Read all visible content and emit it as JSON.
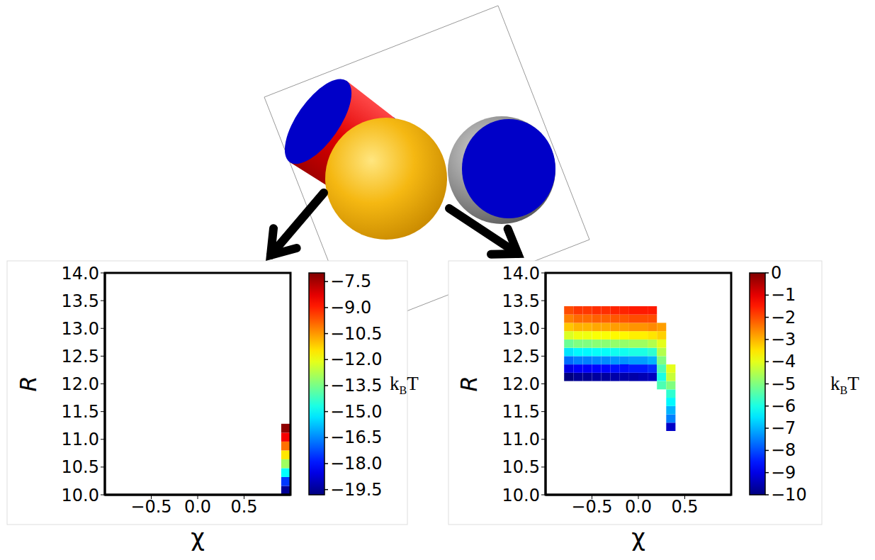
{
  "chart_data": [
    {
      "type": "heatmap",
      "x_label": "χ",
      "y_label": "R",
      "xlim": [
        -1.0,
        1.0
      ],
      "xticks": [
        {
          "value": -0.5,
          "label": "−0.5"
        },
        {
          "value": 0,
          "label": "0.0"
        },
        0.5
      ],
      "ylim": [
        10.0,
        14.0
      ],
      "yticks": [
        {
          "value": 10,
          "label": "10.0"
        },
        10.5,
        {
          "value": 11,
          "label": "11.0"
        },
        11.5,
        {
          "value": 12,
          "label": "12.0"
        },
        12.5,
        {
          "value": 13,
          "label": "13.0"
        },
        13.5,
        {
          "value": 14,
          "label": "14.0"
        }
      ],
      "heatmap": {
        "x_edges": [
          0.9,
          1.0
        ],
        "y_edges": [
          10.0,
          10.16,
          10.32,
          10.48,
          10.64,
          10.8,
          10.96,
          11.12,
          11.28
        ],
        "cells": [
          [
            -19.5
          ],
          [
            -17.5
          ],
          [
            -15.0
          ],
          [
            -13.0
          ],
          [
            -11.5
          ],
          [
            -10.0
          ],
          [
            -8.5
          ],
          [
            -7.2
          ]
        ]
      },
      "colorbar": {
        "range": [
          -19.8,
          -7.0
        ],
        "ticks": [
          {
            "value": -7.5,
            "label": "−7.5"
          },
          {
            "value": -9.0,
            "label": "−9.0"
          },
          {
            "value": -10.5,
            "label": "−10.5"
          },
          {
            "value": -12.0,
            "label": "−12.0"
          },
          {
            "value": -13.5,
            "label": "−13.5"
          },
          {
            "value": -15.0,
            "label": "−15.0"
          },
          {
            "value": -16.5,
            "label": "−16.5"
          },
          {
            "value": -18.0,
            "label": "−18.0"
          },
          {
            "value": -19.5,
            "label": "−19.5"
          }
        ],
        "label": {
          "main": "k",
          "sub": "B",
          "after": "T"
        }
      }
    },
    {
      "type": "heatmap",
      "x_label": "χ",
      "y_label": "R",
      "xlim": [
        -1.0,
        1.0
      ],
      "xticks": [
        {
          "value": -0.5,
          "label": "−0.5"
        },
        {
          "value": 0,
          "label": "0.0"
        },
        0.5
      ],
      "ylim": [
        10.0,
        14.0
      ],
      "yticks": [
        {
          "value": 10,
          "label": "10.0"
        },
        10.5,
        {
          "value": 11,
          "label": "11.0"
        },
        11.5,
        {
          "value": 12,
          "label": "12.0"
        },
        12.5,
        {
          "value": 13,
          "label": "13.0"
        },
        13.5,
        {
          "value": 14,
          "label": "14.0"
        }
      ],
      "heatmap": {
        "x_edges": [
          -0.8,
          -0.7,
          -0.6,
          -0.5,
          -0.4,
          -0.3,
          -0.2,
          -0.1,
          0.0,
          0.1,
          0.2,
          0.3,
          0.4
        ],
        "y_edges": [
          11.15,
          11.3,
          11.45,
          11.6,
          11.75,
          11.9,
          12.05,
          12.2,
          12.35,
          12.5,
          12.65,
          12.8,
          12.95,
          13.1,
          13.25,
          13.4
        ],
        "cells": [
          [
            null,
            null,
            null,
            null,
            null,
            null,
            null,
            null,
            null,
            null,
            null,
            -9.3
          ],
          [
            null,
            null,
            null,
            null,
            null,
            null,
            null,
            null,
            null,
            null,
            null,
            -7.5
          ],
          [
            null,
            null,
            null,
            null,
            null,
            null,
            null,
            null,
            null,
            null,
            null,
            -7.0
          ],
          [
            null,
            null,
            null,
            null,
            null,
            null,
            null,
            null,
            null,
            null,
            null,
            -6.3
          ],
          [
            null,
            null,
            null,
            null,
            null,
            null,
            null,
            null,
            null,
            null,
            null,
            -5.8
          ],
          [
            null,
            null,
            null,
            null,
            null,
            null,
            null,
            null,
            null,
            null,
            -5.5,
            -5.0
          ],
          [
            -10.0,
            -9.8,
            -9.8,
            -9.7,
            -9.7,
            -9.6,
            -9.6,
            -9.6,
            -9.5,
            -9.4,
            -6.0,
            -4.3
          ],
          [
            -9.0,
            -8.8,
            -8.8,
            -8.7,
            -8.7,
            -8.6,
            -8.6,
            -8.5,
            -8.5,
            -8.3,
            -5.5,
            -4.0
          ],
          [
            -7.7,
            -7.5,
            -7.5,
            -7.4,
            -7.4,
            -7.3,
            -7.3,
            -7.2,
            -7.2,
            -7.0,
            -5.0,
            null
          ],
          [
            -6.5,
            -6.3,
            -6.3,
            -6.2,
            -6.2,
            -6.1,
            -6.1,
            -6.0,
            -6.0,
            -5.8,
            -4.5,
            null
          ],
          [
            -5.2,
            -5.0,
            -5.0,
            -4.9,
            -4.9,
            -4.8,
            -4.8,
            -4.7,
            -4.7,
            -4.5,
            -4.0,
            null
          ],
          [
            -4.1,
            -3.9,
            -3.9,
            -3.8,
            -3.8,
            -3.7,
            -3.7,
            -3.6,
            -3.6,
            -3.5,
            -3.3,
            null
          ],
          [
            -3.2,
            -3.0,
            -3.0,
            -2.9,
            -2.9,
            -2.8,
            -2.8,
            -2.7,
            -2.7,
            -2.6,
            -2.8,
            null
          ],
          [
            -2.5,
            -2.3,
            -2.3,
            -2.2,
            -2.2,
            -2.1,
            -2.1,
            -2.0,
            -2.0,
            -2.0,
            null,
            null
          ],
          [
            -2.0,
            -1.8,
            -1.8,
            -1.7,
            -1.7,
            -1.6,
            -1.6,
            -1.5,
            -1.5,
            -1.5,
            null,
            null
          ]
        ]
      },
      "colorbar": {
        "range": [
          -10,
          0
        ],
        "ticks": [
          0,
          {
            "value": -1,
            "label": "−1"
          },
          {
            "value": -2,
            "label": "−2"
          },
          {
            "value": -3,
            "label": "−3"
          },
          {
            "value": -4,
            "label": "−4"
          },
          {
            "value": -5,
            "label": "−5"
          },
          {
            "value": -6,
            "label": "−6"
          },
          {
            "value": -7,
            "label": "−7"
          },
          {
            "value": -8,
            "label": "−8"
          },
          {
            "value": -9,
            "label": "−9"
          },
          {
            "value": -10,
            "label": "−10"
          }
        ],
        "label": {
          "main": "k",
          "sub": "B",
          "after": "T"
        }
      }
    }
  ]
}
